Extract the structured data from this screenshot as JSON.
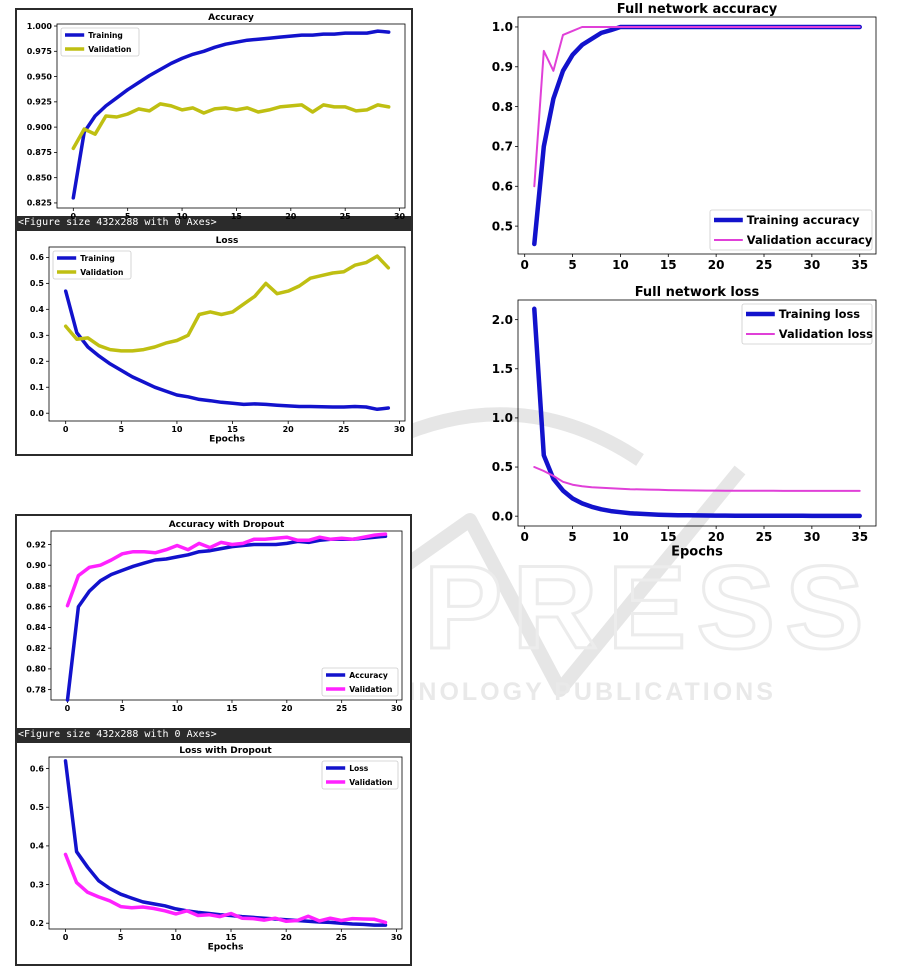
{
  "figure_caption": "<Figure size 432x288 with 0 Axes>",
  "watermark": {
    "main": "SCITEPRESS",
    "sub": "SCIENCE AND TECHNOLOGY PUBLICATIONS"
  },
  "colors": {
    "training": "#1212cc",
    "validation_olive": "#bfbf12",
    "magenta": "#ff22ff",
    "pink": "#e040d8",
    "dark_frame": "#2b2b2b"
  },
  "chart_data": [
    {
      "id": "acc",
      "type": "line",
      "title": "Accuracy",
      "xlabel": "",
      "ylabel": "",
      "xlim": [
        -1.5,
        30.5
      ],
      "ylim": [
        0.82,
        1.002
      ],
      "xticks": [
        0,
        5,
        10,
        15,
        20,
        25,
        30
      ],
      "yticks": [
        0.825,
        0.85,
        0.875,
        0.9,
        0.925,
        0.95,
        0.975,
        1.0
      ],
      "yfmt": 3,
      "legend": "upper-left",
      "grid": false,
      "x": [
        0,
        1,
        2,
        3,
        4,
        5,
        6,
        7,
        8,
        9,
        10,
        11,
        12,
        13,
        14,
        15,
        16,
        17,
        18,
        19,
        20,
        21,
        22,
        23,
        24,
        25,
        26,
        27,
        28,
        29
      ],
      "series": [
        {
          "name": "Training",
          "color": "training",
          "values": [
            0.83,
            0.895,
            0.911,
            0.921,
            0.929,
            0.937,
            0.944,
            0.951,
            0.957,
            0.963,
            0.968,
            0.972,
            0.975,
            0.979,
            0.982,
            0.984,
            0.986,
            0.987,
            0.988,
            0.989,
            0.99,
            0.991,
            0.991,
            0.992,
            0.992,
            0.993,
            0.993,
            0.993,
            0.995,
            0.994
          ]
        },
        {
          "name": "Validation",
          "color": "validation_olive",
          "values": [
            0.879,
            0.898,
            0.893,
            0.911,
            0.91,
            0.913,
            0.918,
            0.916,
            0.923,
            0.921,
            0.917,
            0.919,
            0.914,
            0.918,
            0.919,
            0.917,
            0.919,
            0.915,
            0.917,
            0.92,
            0.921,
            0.922,
            0.915,
            0.922,
            0.92,
            0.92,
            0.916,
            0.917,
            0.922,
            0.92
          ]
        }
      ]
    },
    {
      "id": "loss",
      "type": "line",
      "title": "Loss",
      "xlabel": "Epochs",
      "ylabel": "",
      "xlim": [
        -1.5,
        30.5
      ],
      "ylim": [
        -0.03,
        0.64
      ],
      "xticks": [
        0,
        5,
        10,
        15,
        20,
        25,
        30
      ],
      "yticks": [
        0.0,
        0.1,
        0.2,
        0.3,
        0.4,
        0.5,
        0.6
      ],
      "yfmt": 1,
      "legend": "upper-left",
      "grid": false,
      "x": [
        0,
        1,
        2,
        3,
        4,
        5,
        6,
        7,
        8,
        9,
        10,
        11,
        12,
        13,
        14,
        15,
        16,
        17,
        18,
        19,
        20,
        21,
        22,
        23,
        24,
        25,
        26,
        27,
        28,
        29
      ],
      "series": [
        {
          "name": "Training",
          "color": "training",
          "values": [
            0.47,
            0.31,
            0.255,
            0.22,
            0.19,
            0.165,
            0.14,
            0.12,
            0.1,
            0.085,
            0.07,
            0.063,
            0.053,
            0.048,
            0.042,
            0.038,
            0.034,
            0.036,
            0.034,
            0.031,
            0.028,
            0.026,
            0.026,
            0.025,
            0.024,
            0.024,
            0.026,
            0.024,
            0.015,
            0.02
          ]
        },
        {
          "name": "Validation",
          "color": "validation_olive",
          "values": [
            0.335,
            0.285,
            0.29,
            0.26,
            0.245,
            0.24,
            0.24,
            0.245,
            0.255,
            0.27,
            0.28,
            0.3,
            0.38,
            0.39,
            0.38,
            0.39,
            0.42,
            0.45,
            0.5,
            0.46,
            0.47,
            0.49,
            0.52,
            0.53,
            0.54,
            0.545,
            0.57,
            0.58,
            0.605,
            0.56
          ]
        }
      ]
    },
    {
      "id": "acc-dropout",
      "type": "line",
      "title": "Accuracy with Dropout",
      "xlabel": "",
      "ylabel": "",
      "xlim": [
        -1.5,
        30.5
      ],
      "ylim": [
        0.77,
        0.933
      ],
      "xticks": [
        0,
        5,
        10,
        15,
        20,
        25,
        30
      ],
      "yticks": [
        0.78,
        0.8,
        0.82,
        0.84,
        0.86,
        0.88,
        0.9,
        0.92
      ],
      "yfmt": 2,
      "legend": "lower-right",
      "grid": false,
      "x": [
        0,
        1,
        2,
        3,
        4,
        5,
        6,
        7,
        8,
        9,
        10,
        11,
        12,
        13,
        14,
        15,
        16,
        17,
        18,
        19,
        20,
        21,
        22,
        23,
        24,
        25,
        26,
        27,
        28,
        29
      ],
      "series": [
        {
          "name": "Accuracy",
          "color": "training",
          "values": [
            0.77,
            0.86,
            0.875,
            0.885,
            0.891,
            0.895,
            0.899,
            0.902,
            0.905,
            0.906,
            0.908,
            0.91,
            0.913,
            0.914,
            0.916,
            0.918,
            0.919,
            0.92,
            0.92,
            0.92,
            0.921,
            0.923,
            0.922,
            0.924,
            0.925,
            0.925,
            0.925,
            0.926,
            0.927,
            0.928
          ]
        },
        {
          "name": "Validation",
          "color": "magenta",
          "values": [
            0.861,
            0.89,
            0.898,
            0.9,
            0.905,
            0.911,
            0.913,
            0.913,
            0.912,
            0.915,
            0.919,
            0.915,
            0.921,
            0.917,
            0.922,
            0.92,
            0.921,
            0.925,
            0.925,
            0.926,
            0.927,
            0.924,
            0.924,
            0.927,
            0.925,
            0.926,
            0.925,
            0.927,
            0.929,
            0.93
          ]
        }
      ]
    },
    {
      "id": "loss-dropout",
      "type": "line",
      "title": "Loss with Dropout",
      "xlabel": "Epochs",
      "ylabel": "",
      "xlim": [
        -1.5,
        30.5
      ],
      "ylim": [
        0.185,
        0.63
      ],
      "xticks": [
        0,
        5,
        10,
        15,
        20,
        25,
        30
      ],
      "yticks": [
        0.2,
        0.3,
        0.4,
        0.5,
        0.6
      ],
      "yfmt": 1,
      "legend": "upper-right",
      "grid": false,
      "x": [
        0,
        1,
        2,
        3,
        4,
        5,
        6,
        7,
        8,
        9,
        10,
        11,
        12,
        13,
        14,
        15,
        16,
        17,
        18,
        19,
        20,
        21,
        22,
        23,
        24,
        25,
        26,
        27,
        28,
        29
      ],
      "series": [
        {
          "name": "Loss",
          "color": "training",
          "values": [
            0.62,
            0.385,
            0.345,
            0.31,
            0.29,
            0.275,
            0.265,
            0.255,
            0.25,
            0.245,
            0.237,
            0.232,
            0.228,
            0.225,
            0.222,
            0.22,
            0.217,
            0.215,
            0.213,
            0.211,
            0.209,
            0.207,
            0.205,
            0.203,
            0.202,
            0.2,
            0.198,
            0.197,
            0.195,
            0.195
          ]
        },
        {
          "name": "Validation",
          "color": "magenta",
          "values": [
            0.378,
            0.305,
            0.28,
            0.268,
            0.258,
            0.243,
            0.24,
            0.242,
            0.238,
            0.232,
            0.224,
            0.232,
            0.22,
            0.222,
            0.217,
            0.225,
            0.213,
            0.212,
            0.208,
            0.213,
            0.205,
            0.207,
            0.218,
            0.206,
            0.213,
            0.207,
            0.212,
            0.211,
            0.21,
            0.202
          ]
        }
      ]
    },
    {
      "id": "full-acc",
      "type": "line",
      "title": "Full network accuracy",
      "xlabel": "",
      "ylabel": "",
      "xlim": [
        -0.7,
        36.7
      ],
      "ylim": [
        0.43,
        1.025
      ],
      "xticks": [
        0,
        5,
        10,
        15,
        20,
        25,
        30,
        35
      ],
      "yticks": [
        0.5,
        0.6,
        0.7,
        0.8,
        0.9,
        1.0
      ],
      "yfmt": 1,
      "legend": "lower-right",
      "grid": false,
      "x": [
        1,
        2,
        3,
        4,
        5,
        6,
        7,
        8,
        9,
        10,
        11,
        12,
        13,
        14,
        15,
        16,
        17,
        18,
        19,
        20,
        21,
        22,
        23,
        24,
        25,
        26,
        27,
        28,
        29,
        30,
        31,
        32,
        33,
        34,
        35
      ],
      "series": [
        {
          "name": "Training accuracy",
          "color": "training",
          "values": [
            0.455,
            0.7,
            0.82,
            0.89,
            0.93,
            0.955,
            0.97,
            0.985,
            0.992,
            1.0,
            1.0,
            1.0,
            1.0,
            1.0,
            1.0,
            1.0,
            1.0,
            1.0,
            1.0,
            1.0,
            1.0,
            1.0,
            1.0,
            1.0,
            1.0,
            1.0,
            1.0,
            1.0,
            1.0,
            1.0,
            1.0,
            1.0,
            1.0,
            1.0,
            1.0
          ]
        },
        {
          "name": "Validation accuracy",
          "color": "pink",
          "values": [
            0.6,
            0.94,
            0.89,
            0.98,
            0.99,
            1.0,
            1.0,
            1.0,
            1.0,
            1.0,
            1.0,
            1.0,
            1.0,
            1.0,
            1.0,
            1.0,
            1.0,
            1.0,
            1.0,
            1.0,
            1.0,
            1.0,
            1.0,
            1.0,
            1.0,
            1.0,
            1.0,
            1.0,
            1.0,
            1.0,
            1.0,
            1.0,
            1.0,
            1.0,
            1.0
          ]
        }
      ]
    },
    {
      "id": "full-loss",
      "type": "line",
      "title": "Full network loss",
      "xlabel": "Epochs",
      "ylabel": "",
      "xlim": [
        -0.7,
        36.7
      ],
      "ylim": [
        -0.1,
        2.2
      ],
      "xticks": [
        0,
        5,
        10,
        15,
        20,
        25,
        30,
        35
      ],
      "yticks": [
        0.0,
        0.5,
        1.0,
        1.5,
        2.0
      ],
      "yfmt": 1,
      "legend": "upper-right",
      "grid": false,
      "x": [
        1,
        2,
        3,
        4,
        5,
        6,
        7,
        8,
        9,
        10,
        11,
        12,
        13,
        14,
        15,
        16,
        17,
        18,
        19,
        20,
        21,
        22,
        23,
        24,
        25,
        26,
        27,
        28,
        29,
        30,
        31,
        32,
        33,
        34,
        35
      ],
      "series": [
        {
          "name": "Training loss",
          "color": "training",
          "values": [
            2.11,
            0.62,
            0.38,
            0.26,
            0.18,
            0.13,
            0.095,
            0.07,
            0.052,
            0.04,
            0.03,
            0.024,
            0.019,
            0.015,
            0.012,
            0.01,
            0.009,
            0.008,
            0.007,
            0.006,
            0.006,
            0.005,
            0.005,
            0.005,
            0.004,
            0.004,
            0.004,
            0.004,
            0.004,
            0.003,
            0.003,
            0.003,
            0.003,
            0.003,
            0.003
          ]
        },
        {
          "name": "Validation loss",
          "color": "pink",
          "values": [
            0.5,
            0.46,
            0.41,
            0.35,
            0.32,
            0.305,
            0.295,
            0.29,
            0.285,
            0.28,
            0.275,
            0.272,
            0.27,
            0.268,
            0.265,
            0.263,
            0.262,
            0.261,
            0.26,
            0.26,
            0.259,
            0.259,
            0.258,
            0.258,
            0.258,
            0.258,
            0.257,
            0.257,
            0.257,
            0.257,
            0.257,
            0.257,
            0.257,
            0.257,
            0.257
          ]
        }
      ]
    }
  ]
}
